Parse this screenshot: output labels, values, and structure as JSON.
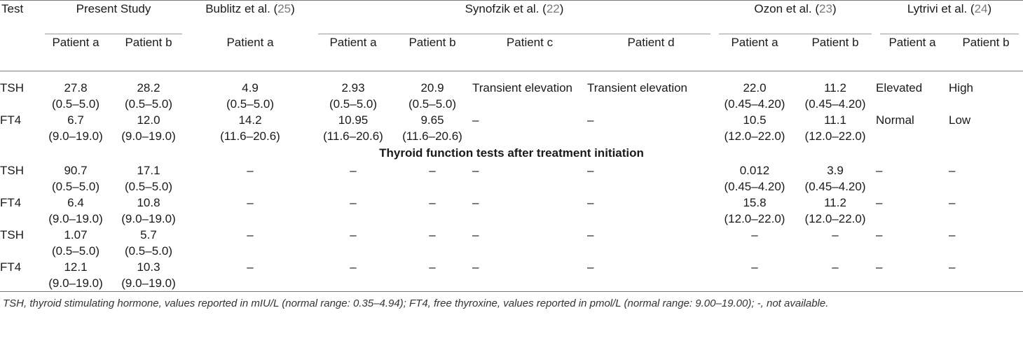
{
  "header": {
    "test_label": "Test",
    "groups": [
      {
        "prefix": "Present Study",
        "ref": "",
        "suffix": ""
      },
      {
        "prefix": "Bublitz et al. (",
        "ref": "25",
        "suffix": ")"
      },
      {
        "prefix": "Synofzik et al. (",
        "ref": "22",
        "suffix": ")"
      },
      {
        "prefix": "Ozon et al. (",
        "ref": "23",
        "suffix": ")"
      },
      {
        "prefix": "Lytrivi et al. (",
        "ref": "24",
        "suffix": ")"
      }
    ],
    "patients": [
      "Patient a",
      "Patient b",
      "Patient a",
      "Patient a",
      "Patient b",
      "Patient c",
      "Patient d",
      "Patient a",
      "Patient b",
      "Patient a",
      "Patient b"
    ]
  },
  "rows_before": [
    {
      "label": "TSH",
      "cells": [
        [
          "27.8",
          "(0.5–5.0)"
        ],
        [
          "28.2",
          "(0.5–5.0)"
        ],
        [
          "4.9",
          "(0.5–5.0)"
        ],
        [
          "2.93",
          "(0.5–5.0)"
        ],
        [
          "20.9",
          "(0.5–5.0)"
        ],
        [
          "Transient elevation"
        ],
        [
          "Transient elevation"
        ],
        [
          "22.0",
          "(0.45–4.20)"
        ],
        [
          "11.2",
          "(0.45–4.20)"
        ],
        [
          "Elevated"
        ],
        [
          "High"
        ]
      ]
    },
    {
      "label": "FT4",
      "cells": [
        [
          "6.7",
          "(9.0–19.0)"
        ],
        [
          "12.0",
          "(9.0–19.0)"
        ],
        [
          "14.2",
          "(11.6–20.6)"
        ],
        [
          "10.95",
          "(11.6–20.6)"
        ],
        [
          "9.65",
          "(11.6–20.6)"
        ],
        [
          "–"
        ],
        [
          "–"
        ],
        [
          "10.5",
          "(12.0–22.0)"
        ],
        [
          "11.1",
          "(12.0–22.0)"
        ],
        [
          "Normal"
        ],
        [
          "Low"
        ]
      ]
    }
  ],
  "section_title": "Thyroid function tests after treatment initiation",
  "rows_after": [
    {
      "label": "TSH",
      "cells": [
        [
          "90.7",
          "(0.5–5.0)"
        ],
        [
          "17.1",
          "(0.5–5.0)"
        ],
        [
          "–"
        ],
        [
          "–"
        ],
        [
          "–"
        ],
        [
          "–"
        ],
        [
          "–"
        ],
        [
          "0.012",
          "(0.45–4.20)"
        ],
        [
          "3.9",
          "(0.45–4.20)"
        ],
        [
          "–"
        ],
        [
          "–"
        ]
      ]
    },
    {
      "label": "FT4",
      "cells": [
        [
          "6.4",
          "(9.0–19.0)"
        ],
        [
          "10.8",
          "(9.0–19.0)"
        ],
        [
          "–"
        ],
        [
          "–"
        ],
        [
          "–"
        ],
        [
          "–"
        ],
        [
          "–"
        ],
        [
          "15.8",
          "(12.0–22.0)"
        ],
        [
          "11.2",
          "(12.0–22.0)"
        ],
        [
          "–"
        ],
        [
          "–"
        ]
      ]
    },
    {
      "label": "TSH",
      "cells": [
        [
          "1.07",
          "(0.5–5.0)"
        ],
        [
          "5.7",
          "(0.5–5.0)"
        ],
        [
          "–"
        ],
        [
          "–"
        ],
        [
          "–"
        ],
        [
          "–"
        ],
        [
          "–"
        ],
        [
          "–"
        ],
        [
          "–"
        ],
        [
          "–"
        ],
        [
          "–"
        ]
      ]
    },
    {
      "label": "FT4",
      "cells": [
        [
          "12.1",
          "(9.0–19.0)"
        ],
        [
          "10.3",
          "(9.0–19.0)"
        ],
        [
          "–"
        ],
        [
          "–"
        ],
        [
          "–"
        ],
        [
          "–"
        ],
        [
          "–"
        ],
        [
          "–"
        ],
        [
          "–"
        ],
        [
          "–"
        ],
        [
          "–"
        ]
      ]
    }
  ],
  "footnote": "TSH, thyroid stimulating hormone, values reported in mIU/L (normal range: 0.35–4.94); FT4, free thyroxine, values reported in pmol/L (normal range: 9.00–19.00); -, not available."
}
